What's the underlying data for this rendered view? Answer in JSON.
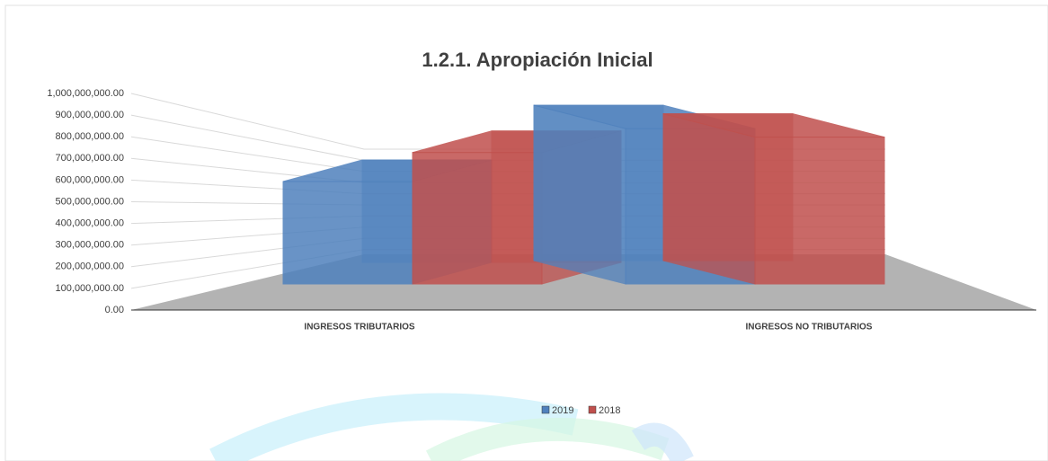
{
  "chart_data": {
    "type": "bar3d",
    "title": "1.2.1. Apropiación Inicial",
    "categories": [
      "INGRESOS TRIBUTARIOS",
      "INGRESOS NO TRIBUTARIOS"
    ],
    "series": [
      {
        "name": "2019",
        "color": "#4f81bd",
        "values": [
          600000000,
          910000000
        ]
      },
      {
        "name": "2018",
        "color": "#c0504d",
        "values": [
          770000000,
          860000000
        ]
      }
    ],
    "ylim": [
      0,
      1000000000
    ],
    "yticks": [
      {
        "value": 0,
        "label": "0.00"
      },
      {
        "value": 100000000,
        "label": "100,000,000.00"
      },
      {
        "value": 200000000,
        "label": "200,000,000.00"
      },
      {
        "value": 300000000,
        "label": "300,000,000.00"
      },
      {
        "value": 400000000,
        "label": "400,000,000.00"
      },
      {
        "value": 500000000,
        "label": "500,000,000.00"
      },
      {
        "value": 600000000,
        "label": "600,000,000.00"
      },
      {
        "value": 700000000,
        "label": "700,000,000.00"
      },
      {
        "value": 800000000,
        "label": "800,000,000.00"
      },
      {
        "value": 900000000,
        "label": "900,000,000.00"
      },
      {
        "value": 1000000000,
        "label": "1,000,000,000.00"
      }
    ],
    "grid": true,
    "legend": "bottom"
  }
}
